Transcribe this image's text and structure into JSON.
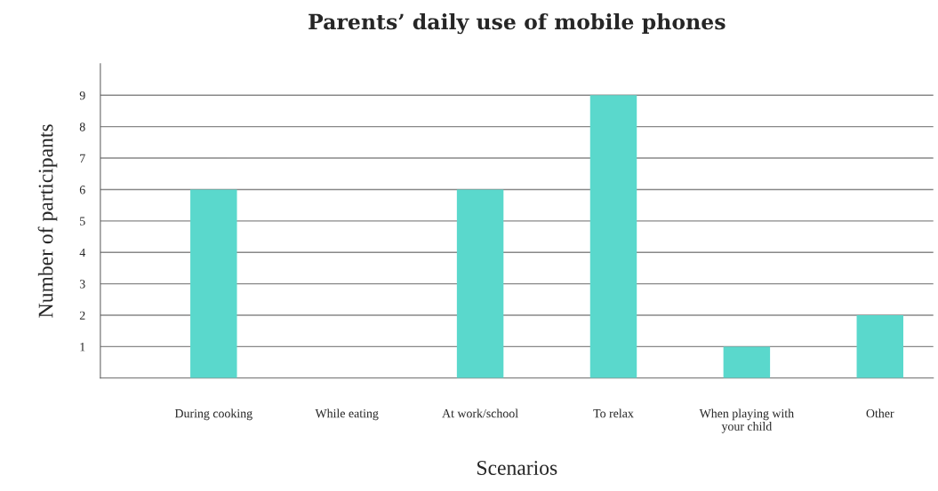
{
  "chart_data": {
    "type": "bar",
    "title": "Parents’ daily use of mobile phones",
    "xlabel": "Scenarios",
    "ylabel": "Number of participants",
    "categories": [
      "During cooking",
      "While eating",
      "At work/school",
      "To relax",
      "When playing with\nyour child",
      "Other"
    ],
    "values": [
      6,
      0,
      6,
      9,
      1,
      2
    ],
    "color": "#5ad8cc",
    "ylim": [
      0,
      10
    ],
    "yticks": [
      1,
      2,
      3,
      4,
      5,
      6,
      7,
      8,
      9
    ],
    "grid": "y",
    "legend": false
  }
}
